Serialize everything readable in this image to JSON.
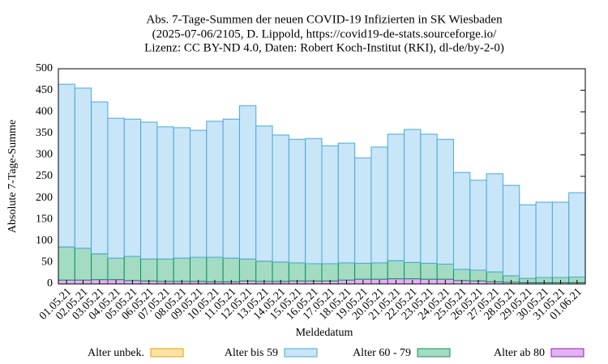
{
  "chart_data": {
    "type": "stacked-bar",
    "title": [
      "Abs. 7-Tage-Summen der neuen COVID-19 Infizierten in SK Wiesbaden",
      "(2025-07-06/2105, D. Lippold, https://covid19-de-stats.sourceforge.io/",
      "Lizenz: CC BY-ND 4.0, Daten: Robert Koch-Institut (RKI), dl-de/by-2-0)"
    ],
    "x_label": "Meldedatum",
    "y_label": "Absolute 7-Tage-Summe",
    "categories": [
      "01.05.21",
      "02.05.21",
      "03.05.21",
      "04.05.21",
      "05.05.21",
      "06.05.21",
      "07.05.21",
      "08.05.21",
      "09.05.21",
      "10.05.21",
      "11.05.21",
      "12.05.21",
      "13.05.21",
      "14.05.21",
      "15.05.21",
      "16.05.21",
      "17.05.21",
      "18.05.21",
      "19.05.21",
      "20.05.21",
      "21.05.21",
      "22.05.21",
      "23.05.21",
      "24.05.21",
      "25.05.21",
      "26.05.21",
      "27.05.21",
      "28.05.21",
      "29.05.21",
      "30.05.21",
      "31.05.21",
      "01.06.21"
    ],
    "series": [
      {
        "name": "Alter unbek.",
        "color": "#fde2a6",
        "stroke": "#e8a000",
        "values": [
          0,
          0,
          0,
          0,
          0,
          0,
          0,
          0,
          0,
          0,
          0,
          0,
          0,
          0,
          0,
          0,
          0,
          0,
          0,
          0,
          0,
          0,
          0,
          0,
          0,
          0,
          0,
          0,
          0,
          0,
          0,
          0
        ]
      },
      {
        "name": "Alter bis 59",
        "color": "#c9e5f8",
        "stroke": "#4aa8d8",
        "values": [
          378,
          372,
          353,
          325,
          319,
          318,
          307,
          303,
          295,
          316,
          323,
          356,
          314,
          295,
          287,
          291,
          274,
          278,
          245,
          269,
          294,
          309,
          300,
          290,
          225,
          209,
          228,
          210,
          171,
          175,
          175,
          196
        ]
      },
      {
        "name": "Alter 60 - 79",
        "color": "#a3dcc2",
        "stroke": "#109060",
        "values": [
          77,
          74,
          60,
          50,
          56,
          51,
          52,
          54,
          56,
          57,
          55,
          51,
          47,
          45,
          42,
          40,
          40,
          40,
          37,
          38,
          42,
          38,
          37,
          35,
          26,
          25,
          23,
          15,
          10,
          12,
          12,
          13
        ]
      },
      {
        "name": "Alter ab 80",
        "color": "#e2b2f2",
        "stroke": "#9020b0",
        "values": [
          9,
          9,
          10,
          10,
          8,
          7,
          6,
          6,
          6,
          5,
          5,
          7,
          6,
          6,
          7,
          7,
          7,
          9,
          11,
          11,
          12,
          12,
          11,
          11,
          8,
          7,
          5,
          4,
          3,
          3,
          3,
          3
        ]
      }
    ],
    "ylim": [
      0,
      500
    ],
    "yticks": [
      0,
      50,
      100,
      150,
      200,
      250,
      300,
      350,
      400,
      450,
      500
    ]
  }
}
